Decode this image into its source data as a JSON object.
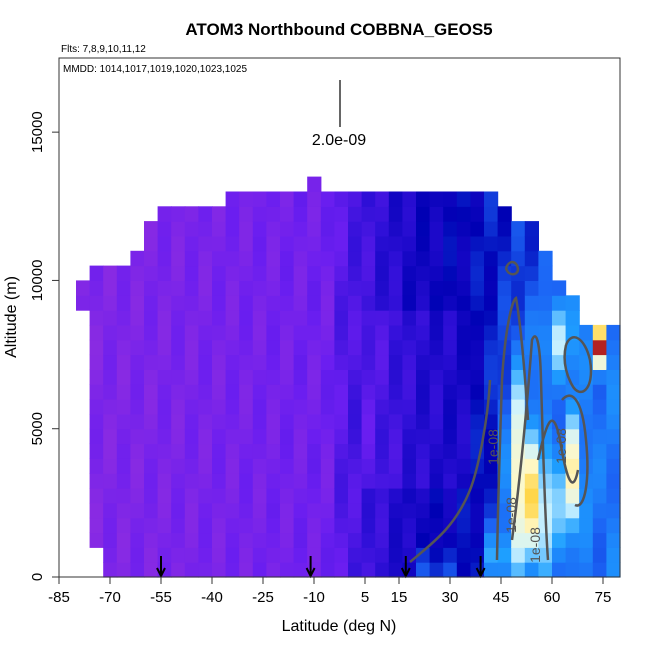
{
  "chart_data": {
    "type": "heatmap",
    "title": "ATOM3 Northbound COBBNA_GEOS5",
    "subtitle_flights": "Flts: 7,8,9,10,11,12",
    "subtitle_dates": "MMDD: 1014,1017,1019,1020,1023,1025",
    "xlabel": "Latitude (deg N)",
    "ylabel": "Altitude (m)",
    "xlim": [
      -85,
      80
    ],
    "ylim": [
      0,
      17500
    ],
    "x_ticks": [
      "-85",
      "-70",
      "-55",
      "-40",
      "-25",
      "-10",
      "5",
      "15",
      "30",
      "45",
      "60",
      "75"
    ],
    "y_ticks": [
      "0",
      "5000",
      "10000",
      "15000"
    ],
    "scale_label": "2.0e-09",
    "contour_labels": [
      "1e-08",
      "1e-08",
      "1e-08",
      "1e-08"
    ],
    "arrow_latitudes": [
      -55,
      -11,
      17,
      39
    ],
    "colorscale": [
      "#8a2be2",
      "#6a1ef0",
      "#3010d8",
      "#0000b4",
      "#1c64f5",
      "#1ea0ff",
      "#cdf3ff",
      "#fff8c8",
      "#ffd23a",
      "#b22222"
    ]
  }
}
